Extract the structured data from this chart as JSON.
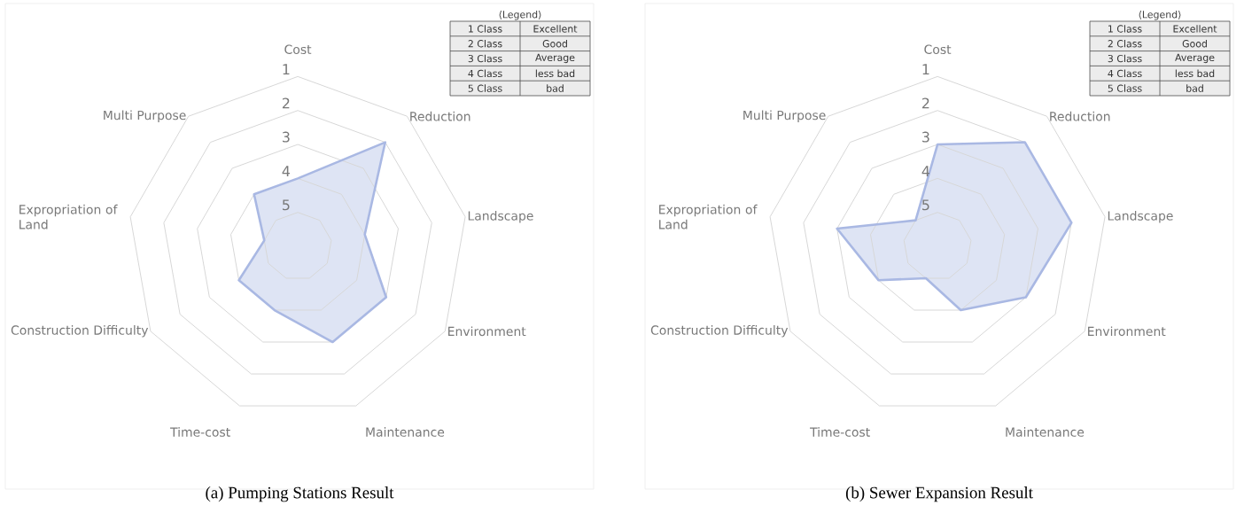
{
  "chart_data": [
    {
      "type": "radar",
      "title": "(a)  Pumping  Stations  Result",
      "categories": [
        "Cost",
        "Reduction",
        "Landscape",
        "Environment",
        "Maintenance",
        "Time-cost",
        "Construction Difficulty",
        "Expropriation of Land",
        "Multi Purpose"
      ],
      "series": [
        {
          "color": "#a9b8e3",
          "values": [
            4,
            2,
            4,
            3,
            3,
            4,
            4,
            5,
            4
          ]
        }
      ],
      "ylim": [
        6,
        1
      ],
      "yticks": [
        1,
        2,
        3,
        4,
        5
      ],
      "annotations": [
        "⟨Legend⟩",
        "1 Class",
        "Excellent",
        "2 Class",
        "Good",
        "3 Class",
        "Average",
        "4 Class",
        "less bad",
        "5 Class",
        "bad"
      ]
    },
    {
      "type": "radar",
      "title": "(b)  Sewer  Expansion  Result",
      "categories": [
        "Cost",
        "Reduction",
        "Landscape",
        "Environment",
        "Maintenance",
        "Time-cost",
        "Construction Difficulty",
        "Expropriation of Land",
        "Multi Purpose"
      ],
      "series": [
        {
          "color": "#a9b8e3",
          "values": [
            3,
            2,
            2,
            3,
            4,
            5,
            4,
            3,
            5
          ]
        }
      ],
      "ylim": [
        6,
        1
      ],
      "yticks": [
        1,
        2,
        3,
        4,
        5
      ],
      "annotations": [
        "⟨Legend⟩",
        "1 Class",
        "Excellent",
        "2 Class",
        "Good",
        "3 Class",
        "Average",
        "4 Class",
        "less bad",
        "5 Class",
        "bad"
      ]
    }
  ]
}
